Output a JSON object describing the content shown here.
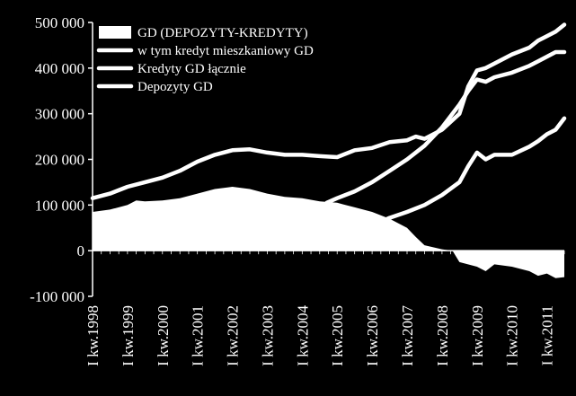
{
  "chart_data": {
    "type": "line",
    "title": "",
    "xlabel": "",
    "ylabel": "",
    "ylim": [
      -100000,
      500000
    ],
    "yticks": [
      500000,
      400000,
      300000,
      200000,
      100000,
      0,
      -100000
    ],
    "ytick_labels": [
      "500 000",
      "400 000",
      "300 000",
      "200 000",
      "100 000",
      "0",
      "-100 000"
    ],
    "xlim": [
      1998.0,
      2011.5
    ],
    "xticks": [
      1998,
      1999,
      2000,
      2001,
      2002,
      2003,
      2004,
      2005,
      2006,
      2007,
      2008,
      2009,
      2010,
      2011
    ],
    "xtick_labels": [
      "I kw.1998",
      "I kw.1999",
      "I kw.2000",
      "I kw.2001",
      "I kw.2002",
      "I kw.2003",
      "I kw.2004",
      "I kw.2005",
      "I kw.2006",
      "I kw.2007",
      "I kw.2008",
      "I kw.2009",
      "I kw.2010",
      "I kw.2011"
    ],
    "legend_position": "top-left",
    "colors": {
      "background": "#000000",
      "foreground": "#ffffff"
    },
    "series": [
      {
        "name": "GD (DEPOZYTY-KREDYTY)",
        "style": "area",
        "points": [
          [
            1998.0,
            85000
          ],
          [
            1998.5,
            90000
          ],
          [
            1999.0,
            100000
          ],
          [
            1999.25,
            110000
          ],
          [
            1999.5,
            108000
          ],
          [
            2000.0,
            110000
          ],
          [
            2000.5,
            115000
          ],
          [
            2001.0,
            125000
          ],
          [
            2001.5,
            135000
          ],
          [
            2002.0,
            140000
          ],
          [
            2002.5,
            135000
          ],
          [
            2003.0,
            125000
          ],
          [
            2003.5,
            118000
          ],
          [
            2004.0,
            115000
          ],
          [
            2004.5,
            108000
          ],
          [
            2005.0,
            105000
          ],
          [
            2005.5,
            95000
          ],
          [
            2006.0,
            85000
          ],
          [
            2006.5,
            70000
          ],
          [
            2007.0,
            50000
          ],
          [
            2007.25,
            30000
          ],
          [
            2007.5,
            12000
          ],
          [
            2008.0,
            3000
          ],
          [
            2008.3,
            0
          ],
          [
            2008.5,
            -25000
          ],
          [
            2009.0,
            -35000
          ],
          [
            2009.25,
            -45000
          ],
          [
            2009.5,
            -30000
          ],
          [
            2010.0,
            -35000
          ],
          [
            2010.5,
            -45000
          ],
          [
            2010.75,
            -55000
          ],
          [
            2011.0,
            -50000
          ],
          [
            2011.25,
            -60000
          ],
          [
            2011.5,
            -58000
          ]
        ]
      },
      {
        "name": "w tym kredyt mieszkaniowy GD",
        "style": "line",
        "points": [
          [
            2006.3,
            65000
          ],
          [
            2006.5,
            72000
          ],
          [
            2007.0,
            85000
          ],
          [
            2007.5,
            100000
          ],
          [
            2008.0,
            122000
          ],
          [
            2008.5,
            150000
          ],
          [
            2008.75,
            185000
          ],
          [
            2009.0,
            215000
          ],
          [
            2009.25,
            200000
          ],
          [
            2009.5,
            210000
          ],
          [
            2010.0,
            210000
          ],
          [
            2010.5,
            228000
          ],
          [
            2010.75,
            240000
          ],
          [
            2011.0,
            255000
          ],
          [
            2011.25,
            265000
          ],
          [
            2011.5,
            290000
          ]
        ]
      },
      {
        "name": "Kredyty GD łącznie",
        "style": "line",
        "points": [
          [
            2004.7,
            105000
          ],
          [
            2005.0,
            115000
          ],
          [
            2005.5,
            130000
          ],
          [
            2006.0,
            150000
          ],
          [
            2006.5,
            175000
          ],
          [
            2007.0,
            200000
          ],
          [
            2007.5,
            230000
          ],
          [
            2008.0,
            270000
          ],
          [
            2008.5,
            320000
          ],
          [
            2008.75,
            350000
          ],
          [
            2009.0,
            375000
          ],
          [
            2009.25,
            370000
          ],
          [
            2009.5,
            380000
          ],
          [
            2010.0,
            390000
          ],
          [
            2010.5,
            405000
          ],
          [
            2010.75,
            415000
          ],
          [
            2011.0,
            425000
          ],
          [
            2011.25,
            435000
          ],
          [
            2011.5,
            435000
          ]
        ]
      },
      {
        "name": "Depozyty GD",
        "style": "line",
        "points": [
          [
            1998.0,
            115000
          ],
          [
            1998.5,
            125000
          ],
          [
            1999.0,
            140000
          ],
          [
            1999.5,
            150000
          ],
          [
            2000.0,
            160000
          ],
          [
            2000.5,
            175000
          ],
          [
            2001.0,
            195000
          ],
          [
            2001.5,
            210000
          ],
          [
            2002.0,
            220000
          ],
          [
            2002.5,
            222000
          ],
          [
            2003.0,
            215000
          ],
          [
            2003.5,
            210000
          ],
          [
            2004.0,
            210000
          ],
          [
            2004.5,
            207000
          ],
          [
            2005.0,
            205000
          ],
          [
            2005.5,
            220000
          ],
          [
            2006.0,
            225000
          ],
          [
            2006.5,
            238000
          ],
          [
            2007.0,
            242000
          ],
          [
            2007.25,
            250000
          ],
          [
            2007.5,
            245000
          ],
          [
            2008.0,
            265000
          ],
          [
            2008.5,
            300000
          ],
          [
            2008.75,
            360000
          ],
          [
            2009.0,
            395000
          ],
          [
            2009.25,
            400000
          ],
          [
            2009.5,
            410000
          ],
          [
            2010.0,
            430000
          ],
          [
            2010.5,
            445000
          ],
          [
            2010.75,
            460000
          ],
          [
            2011.0,
            470000
          ],
          [
            2011.25,
            480000
          ],
          [
            2011.5,
            495000
          ]
        ]
      }
    ]
  }
}
